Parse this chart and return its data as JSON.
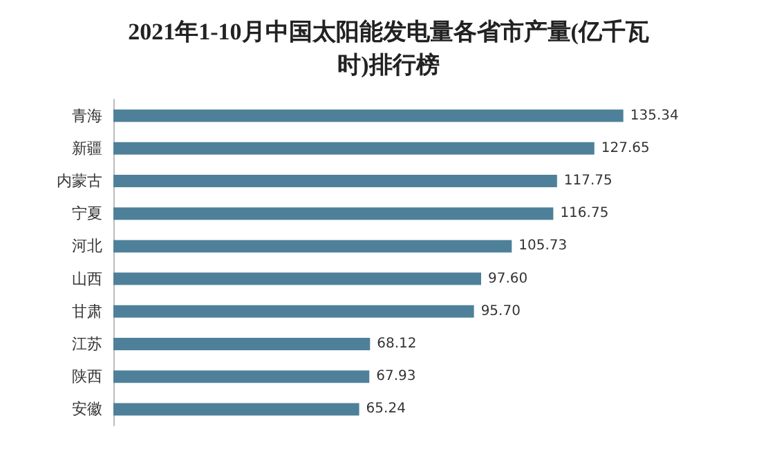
{
  "chart_data": {
    "type": "bar",
    "orientation": "horizontal",
    "title": "2021年1-10月中国太阳能发电量各省市产量(亿千瓦时)排行榜",
    "categories": [
      "青海",
      "新疆",
      "内蒙古",
      "宁夏",
      "河北",
      "山西",
      "甘肃",
      "江苏",
      "陕西",
      "安徽"
    ],
    "values": [
      135.34,
      127.65,
      117.75,
      116.75,
      105.73,
      97.6,
      95.7,
      68.12,
      67.93,
      65.24
    ],
    "value_labels": [
      "135.34",
      "127.65",
      "117.75",
      "116.75",
      "105.73",
      "97.60",
      "95.70",
      "68.12",
      "67.93",
      "65.24"
    ],
    "color": "#4e8199"
  }
}
